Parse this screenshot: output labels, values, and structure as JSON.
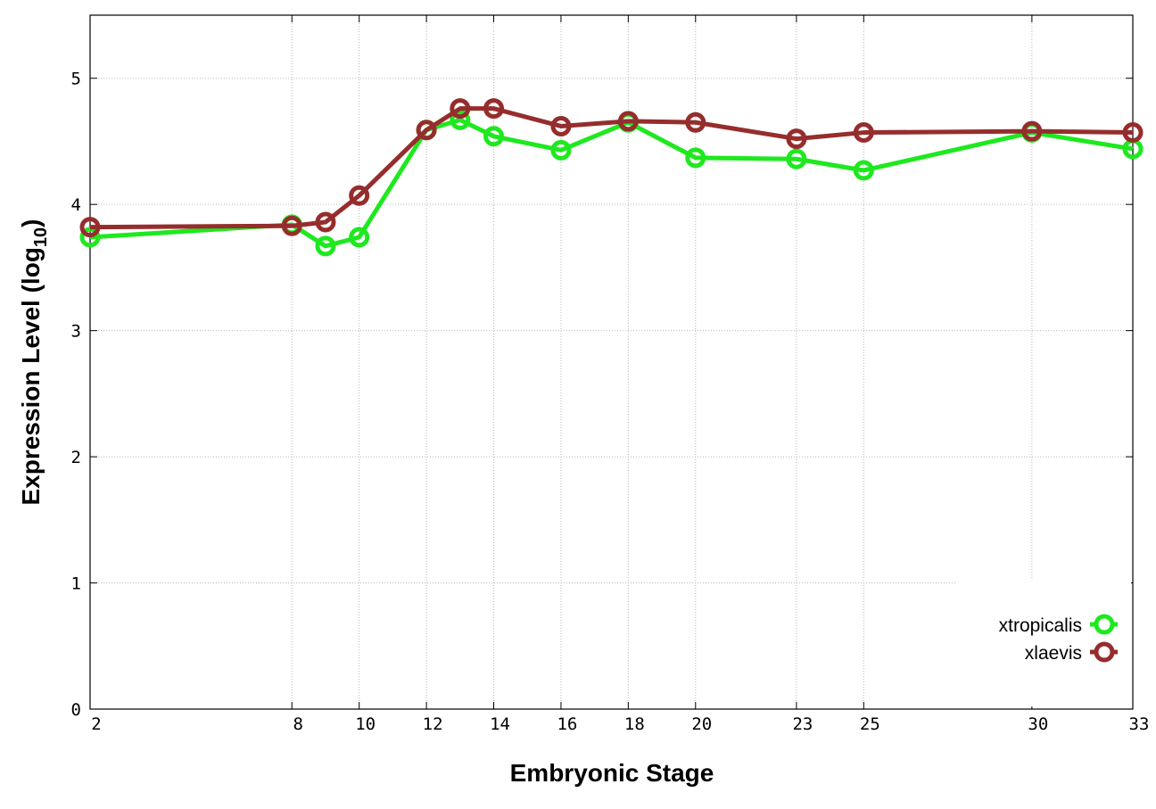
{
  "chart_data": {
    "type": "line",
    "xlabel": "Embryonic Stage",
    "ylabel_main": "Expression Level (log",
    "ylabel_sub": "10",
    "ylabel_close": ")",
    "xlim": [
      2,
      33
    ],
    "ylim": [
      0,
      5.5
    ],
    "x_ticks": [
      2,
      8,
      10,
      12,
      14,
      16,
      18,
      20,
      23,
      25,
      30,
      33
    ],
    "y_ticks": [
      0,
      1,
      2,
      3,
      4,
      5
    ],
    "grid": true,
    "legend_position": "bottom-right",
    "x": [
      2,
      8,
      9,
      10,
      12,
      13,
      14,
      16,
      18,
      20,
      23,
      25,
      30,
      33
    ],
    "series": [
      {
        "name": "xtropicalis",
        "color": "#1ee81e",
        "values": [
          3.74,
          3.84,
          3.67,
          3.74,
          4.59,
          4.67,
          4.54,
          4.43,
          4.65,
          4.37,
          4.36,
          4.27,
          4.57,
          4.44
        ]
      },
      {
        "name": "xlaevis",
        "color": "#962d2d",
        "values": [
          3.82,
          3.83,
          3.86,
          4.07,
          4.59,
          4.76,
          4.76,
          4.62,
          4.66,
          4.65,
          4.52,
          4.57,
          4.58,
          4.57
        ]
      }
    ]
  }
}
